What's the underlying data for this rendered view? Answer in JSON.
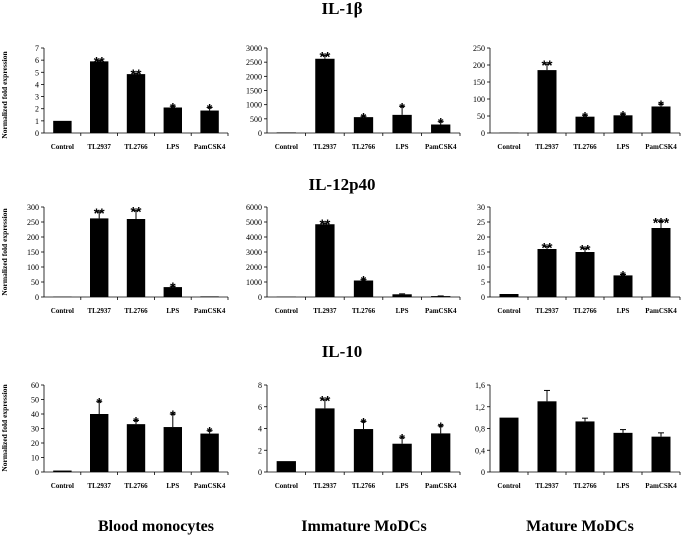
{
  "figure": {
    "row_titles": [
      "IL-1β",
      "IL-12p40",
      "IL-10"
    ],
    "column_labels": [
      "Blood monocytes",
      "Immature MoDCs",
      "Mature MoDCs"
    ],
    "ylabel": "Normalized fold expression"
  },
  "chart_data": [
    {
      "type": "bar",
      "row": 0,
      "col": 0,
      "title": "IL-1β",
      "ylabel": "Normalized fold expression",
      "categories": [
        "Control",
        "TL2937",
        "TL2766",
        "LPS",
        "PamCSK4"
      ],
      "values": [
        1,
        5.9,
        4.85,
        2.1,
        1.85
      ],
      "errors": [
        0,
        0.08,
        0.08,
        0.1,
        0.25
      ],
      "significance": [
        "",
        "**",
        "**",
        "*",
        "*"
      ],
      "ylim": [
        0,
        7
      ],
      "yticks": [
        "0",
        "1",
        "2",
        "3",
        "4",
        "5",
        "6",
        "7"
      ]
    },
    {
      "type": "bar",
      "row": 0,
      "col": 1,
      "title": "IL-1β",
      "categories": [
        "Control",
        "TL2937",
        "TL2766",
        "LPS",
        "PamCSK4"
      ],
      "values": [
        20,
        2620,
        560,
        640,
        300
      ],
      "errors": [
        0,
        120,
        30,
        300,
        100
      ],
      "significance": [
        "",
        "**",
        "*",
        "*",
        "*"
      ],
      "ylim": [
        0,
        3000
      ],
      "yticks": [
        "0",
        "500",
        "1000",
        "1500",
        "2000",
        "2500",
        "3000"
      ]
    },
    {
      "type": "bar",
      "row": 0,
      "col": 2,
      "title": "IL-1β",
      "categories": [
        "Control",
        "TL2937",
        "TL2766",
        "LPS",
        "PamCSK4"
      ],
      "values": [
        1,
        185,
        48,
        52,
        78
      ],
      "errors": [
        0,
        18,
        4,
        3,
        7
      ],
      "significance": [
        "",
        "**",
        "*",
        "*",
        "*"
      ],
      "ylim": [
        0,
        250
      ],
      "yticks": [
        "0",
        "50",
        "100",
        "150",
        "200",
        "250"
      ]
    },
    {
      "type": "bar",
      "row": 1,
      "col": 0,
      "title": "IL-12p40",
      "ylabel": "Normalized fold expression",
      "categories": [
        "Control",
        "TL2937",
        "TL2766",
        "LPS",
        "PamCSK4"
      ],
      "values": [
        1,
        262,
        260,
        33,
        2
      ],
      "errors": [
        0,
        22,
        28,
        3,
        0
      ],
      "significance": [
        "",
        "**",
        "**",
        "*",
        ""
      ],
      "ylim": [
        0,
        300
      ],
      "yticks": [
        "0",
        "50",
        "100",
        "150",
        "200",
        "250",
        "300"
      ]
    },
    {
      "type": "bar",
      "row": 1,
      "col": 1,
      "title": "IL-12p40",
      "categories": [
        "Control",
        "TL2937",
        "TL2766",
        "LPS",
        "PamCSK4"
      ],
      "values": [
        20,
        4850,
        1100,
        180,
        60
      ],
      "errors": [
        0,
        80,
        60,
        30,
        10
      ],
      "significance": [
        "",
        "**",
        "*",
        "",
        ""
      ],
      "ylim": [
        0,
        6000
      ],
      "yticks": [
        "0",
        "1000",
        "2000",
        "3000",
        "4000",
        "5000",
        "6000"
      ]
    },
    {
      "type": "bar",
      "row": 1,
      "col": 2,
      "title": "IL-12p40",
      "categories": [
        "Control",
        "TL2937",
        "TL2766",
        "LPS",
        "PamCSK4"
      ],
      "values": [
        1,
        16,
        15,
        7.2,
        23
      ],
      "errors": [
        0,
        0.8,
        1.2,
        0.3,
        2.2
      ],
      "significance": [
        "",
        "**",
        "**",
        "*",
        "***"
      ],
      "ylim": [
        0,
        30
      ],
      "yticks": [
        "0",
        "5",
        "10",
        "15",
        "20",
        "25",
        "30"
      ]
    },
    {
      "type": "bar",
      "row": 2,
      "col": 0,
      "title": "IL-10",
      "ylabel": "Normalized fold expression",
      "categories": [
        "Control",
        "TL2937",
        "TL2766",
        "LPS",
        "PamCSK4"
      ],
      "values": [
        1,
        40,
        33,
        31,
        26.5
      ],
      "errors": [
        0,
        8.5,
        2.5,
        9,
        2
      ],
      "significance": [
        "",
        "*",
        "*",
        "*",
        "*"
      ],
      "ylim": [
        0,
        60
      ],
      "yticks": [
        "0",
        "10",
        "20",
        "30",
        "40",
        "50",
        "60"
      ]
    },
    {
      "type": "bar",
      "row": 2,
      "col": 1,
      "title": "IL-10",
      "categories": [
        "Control",
        "TL2937",
        "TL2766",
        "LPS",
        "PamCSK4"
      ],
      "values": [
        1,
        5.85,
        3.95,
        2.6,
        3.55
      ],
      "errors": [
        0,
        0.8,
        0.7,
        0.55,
        0.7
      ],
      "significance": [
        "",
        "**",
        "*",
        "*",
        "*"
      ],
      "ylim": [
        0,
        8
      ],
      "yticks": [
        "0",
        "2",
        "4",
        "6",
        "8"
      ]
    },
    {
      "type": "bar",
      "row": 2,
      "col": 2,
      "title": "IL-10",
      "categories": [
        "Control",
        "TL2937",
        "TL2766",
        "LPS",
        "PamCSK4"
      ],
      "values": [
        1,
        1.3,
        0.93,
        0.72,
        0.65
      ],
      "errors": [
        0,
        0.2,
        0.06,
        0.06,
        0.07
      ],
      "significance": [
        "",
        "",
        "",
        "",
        ""
      ],
      "ylim": [
        0,
        1.6
      ],
      "yticks": [
        "0",
        "0,4",
        "0,8",
        "1,2",
        "1,6"
      ]
    }
  ]
}
